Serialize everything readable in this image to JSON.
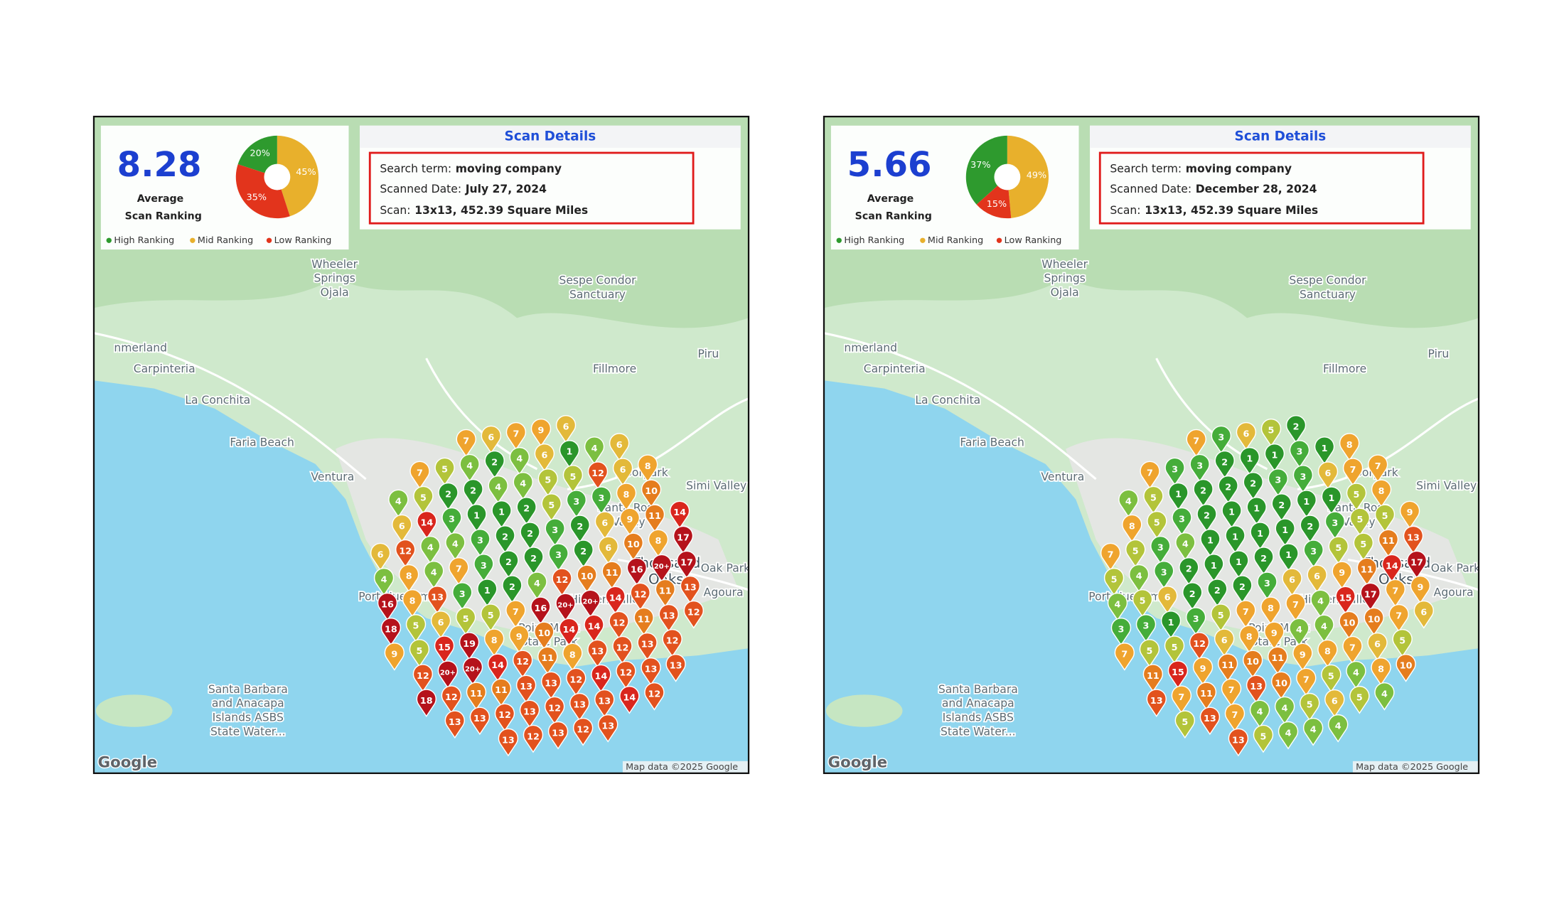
{
  "panels": [
    {
      "average": "8.28",
      "average_label": "Average",
      "average_label2": "Scan Ranking",
      "pie": {
        "values": [
          20,
          45,
          35
        ],
        "value_labels": [
          "20%",
          "45%",
          "35%"
        ],
        "colors": [
          "#2e9a2e",
          "#e8b02c",
          "#e2341c"
        ]
      },
      "legend": [
        "High Ranking",
        "Mid Ranking",
        "Low Ranking"
      ],
      "details": {
        "title": "Scan Details",
        "search_label": "Search term:",
        "search_value": "moving company",
        "date_label": "Scanned Date:",
        "date_value": "July 27, 2024",
        "scan_label": "Scan:",
        "scan_value": "13x13, 452.39 Square Miles"
      },
      "pins": [
        [
          7,
          6,
          7,
          9,
          6
        ],
        [
          7,
          5,
          4,
          2,
          4,
          6,
          1,
          4,
          6
        ],
        [
          4,
          5,
          2,
          2,
          4,
          4,
          5,
          5,
          12,
          6,
          8
        ],
        [
          6,
          14,
          3,
          1,
          1,
          2,
          5,
          3,
          3,
          8,
          10
        ],
        [
          6,
          12,
          4,
          4,
          3,
          2,
          2,
          3,
          2,
          6,
          9,
          11,
          14
        ],
        [
          4,
          8,
          4,
          7,
          3,
          2,
          2,
          3,
          2,
          6,
          10,
          8,
          17
        ],
        [
          16,
          8,
          13,
          3,
          1,
          2,
          4,
          12,
          10,
          11,
          16,
          "20+",
          17
        ],
        [
          18,
          5,
          6,
          5,
          5,
          7,
          16,
          "20+",
          "20+",
          14,
          12,
          11,
          13
        ],
        [
          9,
          5,
          15,
          19,
          8,
          9,
          10,
          14,
          14,
          12,
          11,
          13,
          12
        ],
        [
          12,
          "20+",
          "20+",
          14,
          12,
          11,
          8,
          13,
          12,
          13,
          12
        ],
        [
          18,
          12,
          11,
          11,
          13,
          13,
          12,
          14,
          12,
          13,
          13
        ],
        [
          13,
          13,
          12,
          13,
          12,
          13,
          13,
          14,
          12
        ],
        [
          13,
          12,
          13,
          12,
          13
        ]
      ]
    },
    {
      "average": "5.66",
      "average_label": "Average",
      "average_label2": "Scan Ranking",
      "pie": {
        "values": [
          37,
          49,
          15
        ],
        "value_labels": [
          "37%",
          "49%",
          "15%"
        ],
        "colors": [
          "#2e9a2e",
          "#e8b02c",
          "#e2341c"
        ]
      },
      "legend": [
        "High Ranking",
        "Mid Ranking",
        "Low Ranking"
      ],
      "details": {
        "title": "Scan Details",
        "search_label": "Search term:",
        "search_value": "moving company",
        "date_label": "Scanned Date:",
        "date_value": "December 28, 2024",
        "scan_label": "Scan:",
        "scan_value": "13x13, 452.39 Square Miles"
      },
      "pins": [
        [
          7,
          3,
          6,
          5,
          2
        ],
        [
          7,
          3,
          3,
          2,
          1,
          1,
          3,
          1,
          8
        ],
        [
          4,
          5,
          1,
          2,
          2,
          2,
          3,
          3,
          6,
          7,
          7
        ],
        [
          8,
          5,
          3,
          2,
          1,
          1,
          2,
          1,
          1,
          5,
          8
        ],
        [
          7,
          5,
          3,
          4,
          1,
          1,
          1,
          1,
          2,
          3,
          5,
          5,
          9
        ],
        [
          5,
          4,
          3,
          2,
          1,
          1,
          2,
          1,
          3,
          5,
          5,
          11,
          13
        ],
        [
          4,
          5,
          6,
          2,
          2,
          2,
          3,
          6,
          6,
          9,
          11,
          14,
          17
        ],
        [
          3,
          3,
          1,
          3,
          5,
          7,
          8,
          7,
          4,
          15,
          17,
          7,
          9
        ],
        [
          7,
          5,
          5,
          12,
          6,
          8,
          9,
          4,
          4,
          10,
          10,
          7,
          6
        ],
        [
          11,
          15,
          9,
          11,
          10,
          11,
          9,
          8,
          7,
          6,
          5
        ],
        [
          13,
          7,
          11,
          7,
          13,
          10,
          7,
          5,
          4,
          8,
          10
        ],
        [
          5,
          13,
          7,
          4,
          4,
          5,
          6,
          5,
          4
        ],
        [
          13,
          5,
          4,
          4,
          4
        ]
      ]
    }
  ],
  "map_labels": [
    [
      "Wheeler",
      "Springs",
      "Ojala"
    ],
    [
      "Sespe Condor",
      "Sanctuary"
    ],
    [
      "Fillmore"
    ],
    [
      "Piru"
    ],
    [
      "Carpinteria"
    ],
    [
      "nmerland"
    ],
    [
      "La Conchita"
    ],
    [
      "Faria Beach"
    ],
    [
      "Ventura"
    ],
    [
      "Moorpark"
    ],
    [
      "Simi Valley"
    ],
    [
      "Santa Rosa",
      "Valley"
    ],
    [
      "Thousand",
      "Oaks"
    ],
    [
      "Oak Park"
    ],
    [
      "Agoura"
    ],
    [
      "Hidden Valley"
    ],
    [
      "Port Hueneme"
    ],
    [
      "Point Mugu",
      "State Park"
    ],
    [
      "Santa Barbara",
      "and Anacapa",
      "Islands ASBS",
      "State Water..."
    ]
  ],
  "google": "Google",
  "map_data": "Map data ©2025 Google"
}
